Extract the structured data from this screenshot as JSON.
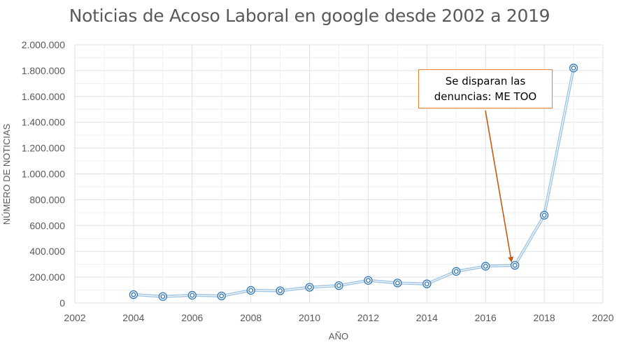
{
  "chart_data": {
    "type": "line",
    "title": "Noticias de Acoso Laboral en google desde 2002 a 2019",
    "xlabel": "AÑO",
    "ylabel": "NÚMERO DE NOTICIAS",
    "xlim": [
      2002,
      2020
    ],
    "ylim": [
      0,
      2000000
    ],
    "x_ticks": [
      "2002",
      "2004",
      "2006",
      "2008",
      "2010",
      "2012",
      "2014",
      "2016",
      "2018",
      "2020"
    ],
    "y_ticks": [
      "0",
      "200.000",
      "400.000",
      "600.000",
      "800.000",
      "1.000.000",
      "1.200.000",
      "1.400.000",
      "1.600.000",
      "1.800.000",
      "2.000.000"
    ],
    "grid": true,
    "series": [
      {
        "x": [
          2004,
          2005,
          2006,
          2007,
          2008,
          2009,
          2010,
          2011,
          2012,
          2013,
          2014,
          2015,
          2016,
          2017,
          2018,
          2019
        ],
        "values": [
          65000,
          50000,
          60000,
          55000,
          98000,
          95000,
          122000,
          135000,
          175000,
          155000,
          148000,
          245000,
          285000,
          292000,
          680000,
          1820000
        ]
      }
    ],
    "annotation": {
      "text": "Se disparan las denuncias: ME TOO",
      "x": 2017,
      "y": 292000
    },
    "colors": {
      "line": "#9dc3e6",
      "marker": "#2e75b6",
      "grid": "#e0e0e0",
      "annotation": "#c55a11"
    }
  }
}
